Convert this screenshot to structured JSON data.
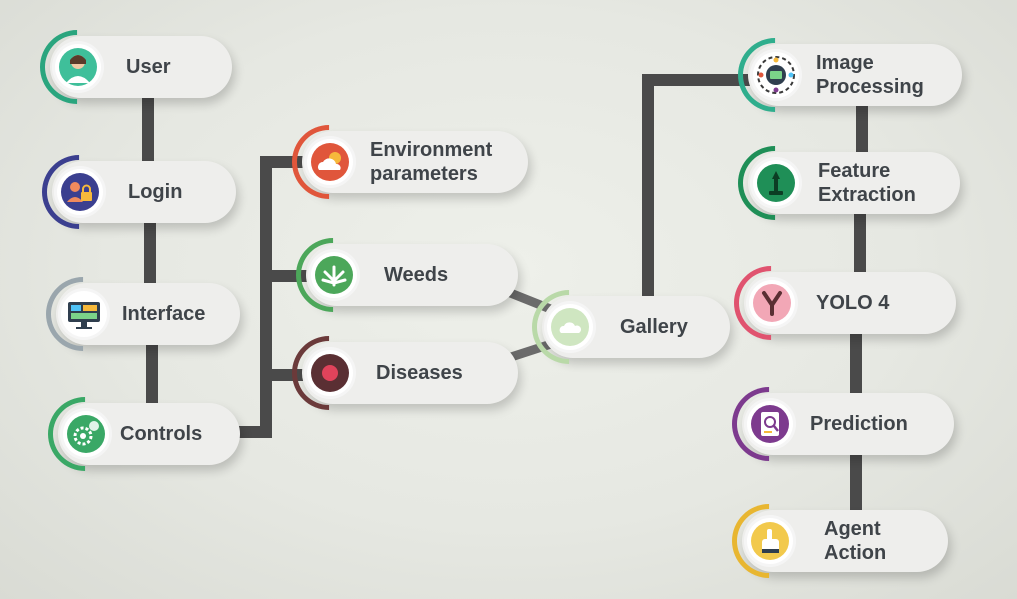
{
  "nodes": {
    "user": {
      "label": "User",
      "accent": "#2aa57e"
    },
    "login": {
      "label": "Login",
      "accent": "#3b3f8f"
    },
    "interface": {
      "label": "Interface",
      "accent": "#9aa6ad"
    },
    "controls": {
      "label": "Controls",
      "accent": "#3aa866"
    },
    "environment": {
      "label": "Environment\nparameters",
      "accent": "#e0563b"
    },
    "weeds": {
      "label": "Weeds",
      "accent": "#4ca75a"
    },
    "diseases": {
      "label": "Diseases",
      "accent": "#6b3a3a"
    },
    "gallery": {
      "label": "Gallery",
      "accent": "#b9d9a8"
    },
    "image_processing": {
      "label": "Image\nProcessing",
      "accent": "#2fae8d"
    },
    "feature_extraction": {
      "label": "Feature\nExtraction",
      "accent": "#1f8f57"
    },
    "yolo": {
      "label": "YOLO 4",
      "accent": "#e0536f"
    },
    "prediction": {
      "label": "Prediction",
      "accent": "#7d3a8e"
    },
    "agent_action": {
      "label": "Agent\nAction",
      "accent": "#e8b631"
    }
  }
}
